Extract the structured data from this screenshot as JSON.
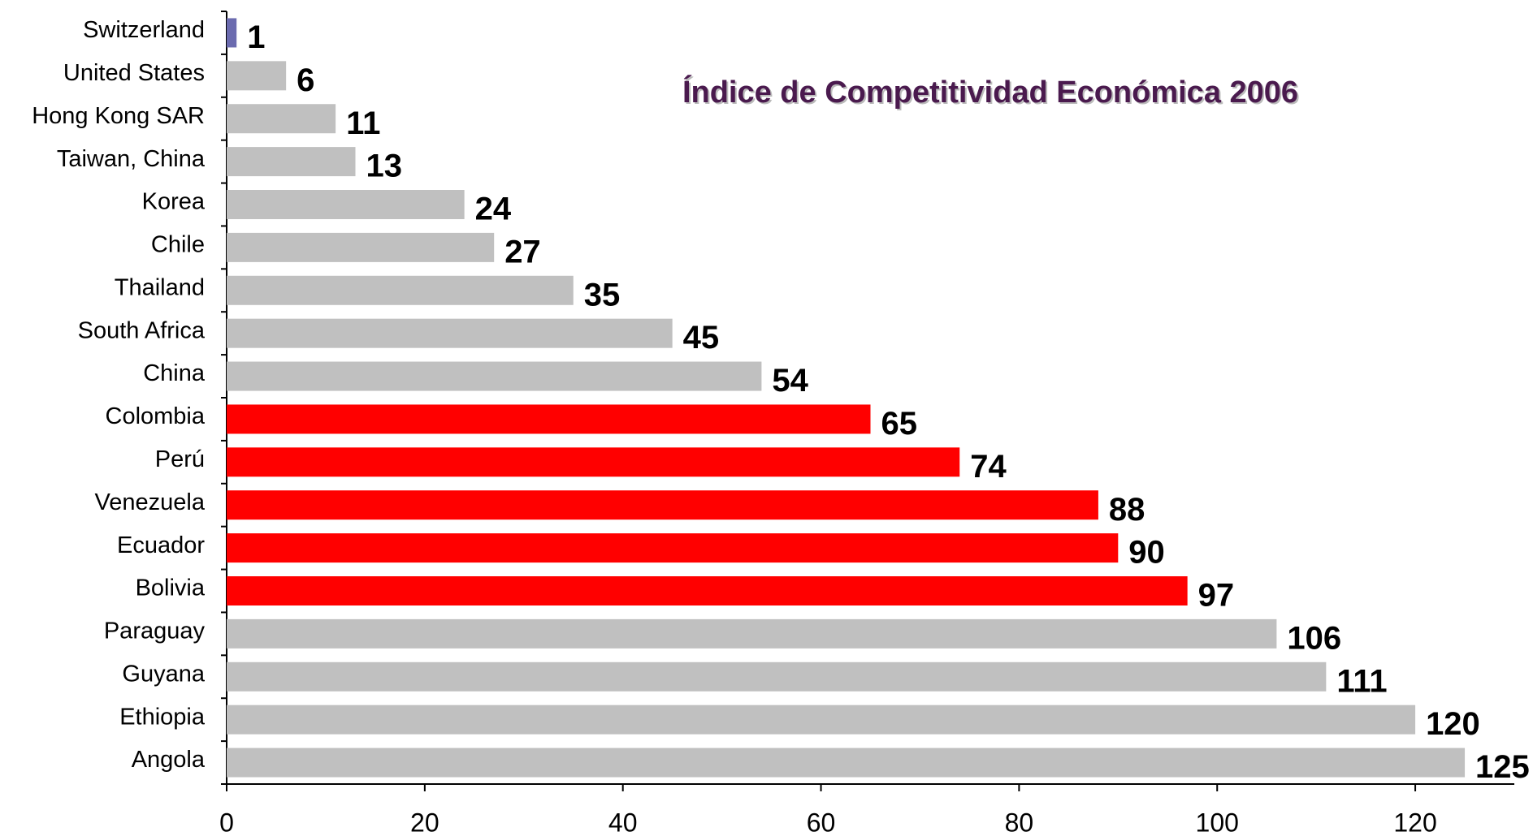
{
  "chart_data": {
    "type": "bar",
    "orientation": "horizontal",
    "title": "Índice de Competitividad Económica 2006",
    "categories": [
      "Switzerland",
      "United States",
      "Hong Kong SAR",
      "Taiwan, China",
      "Korea",
      "Chile",
      "Thailand",
      "South Africa",
      "China",
      "Colombia",
      "Perú",
      "Venezuela",
      "Ecuador",
      "Bolivia",
      "Paraguay",
      "Guyana",
      "Ethiopia",
      "Angola"
    ],
    "values": [
      1,
      6,
      11,
      13,
      24,
      27,
      35,
      45,
      54,
      65,
      74,
      88,
      90,
      97,
      106,
      111,
      120,
      125
    ],
    "colors": [
      "#6b6baf",
      "#c0c0c0",
      "#c0c0c0",
      "#c0c0c0",
      "#c0c0c0",
      "#c0c0c0",
      "#c0c0c0",
      "#c0c0c0",
      "#c0c0c0",
      "#ff0000",
      "#ff0000",
      "#ff0000",
      "#ff0000",
      "#ff0000",
      "#c0c0c0",
      "#c0c0c0",
      "#c0c0c0",
      "#c0c0c0"
    ],
    "xlim": [
      0,
      130
    ],
    "xticks": [
      0,
      20,
      40,
      60,
      80,
      100,
      120
    ],
    "grid": false
  }
}
